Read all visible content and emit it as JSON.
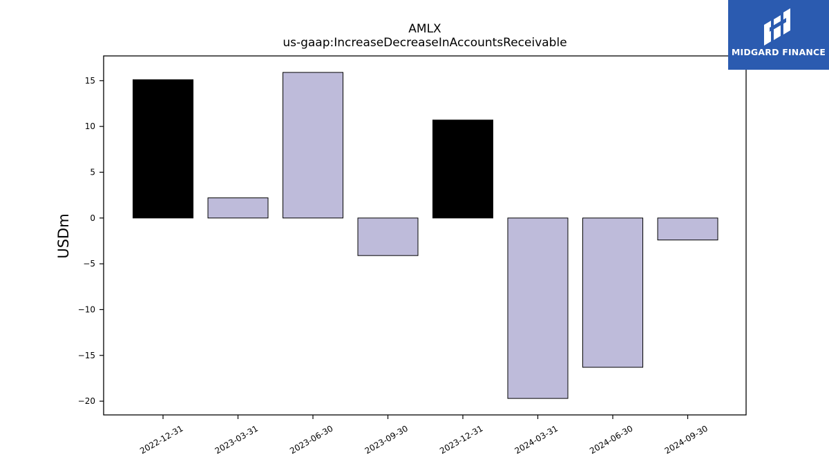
{
  "chart_data": {
    "type": "bar",
    "title": "AMLX",
    "subtitle": "us-gaap:IncreaseDecreaseInAccountsReceivable",
    "xlabel": "",
    "ylabel": "USDm",
    "categories": [
      "2022-12-31",
      "2023-03-31",
      "2023-06-30",
      "2023-09-30",
      "2023-12-31",
      "2024-03-31",
      "2024-06-30",
      "2024-09-30"
    ],
    "values": [
      15.1,
      2.2,
      15.9,
      -4.1,
      10.7,
      -19.7,
      -16.3,
      -2.4
    ],
    "bar_colors": [
      "#000000",
      "#bebbda",
      "#bebbda",
      "#bebbda",
      "#000000",
      "#bebbda",
      "#bebbda",
      "#bebbda"
    ],
    "yticks": [
      15,
      10,
      5,
      0,
      -5,
      -10,
      -15,
      -20
    ],
    "ylim": [
      -21.5,
      17.7
    ],
    "grid": false,
    "legend": "none"
  },
  "brand": {
    "name": "MIDGARD FINANCE",
    "color": "#2b5bb0",
    "icon": "midgard-logo-icon"
  }
}
